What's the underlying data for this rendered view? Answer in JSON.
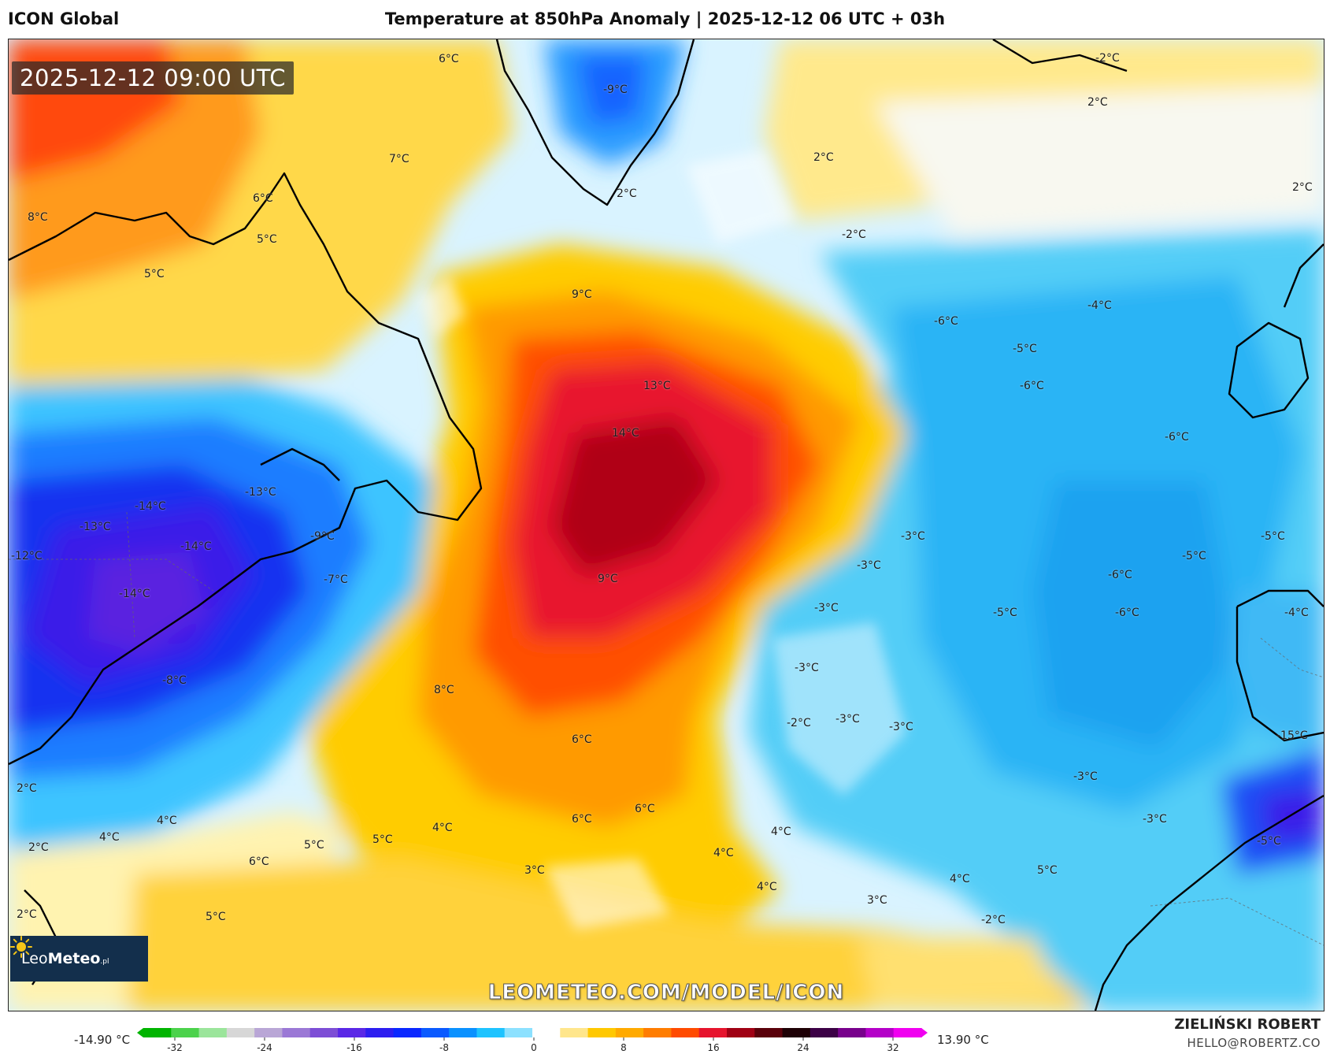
{
  "header": {
    "model": "ICON Global",
    "title": "Temperature at 850hPa Anomaly | 2025-12-12 06 UTC + 03h"
  },
  "map": {
    "timestamp": "2025-12-12 09:00 UTC",
    "watermark": "LEOMETEO.COM/MODEL/ICON",
    "logo_text_light": "Leo",
    "logo_text_bold": "Meteo",
    "logo_suffix": ".pl",
    "labels": [
      "6°C",
      "-9°C",
      "-2°C",
      "2°C",
      "2°C",
      "7°C",
      "2°C",
      "2°C",
      "8°C",
      "6°C",
      "5°C",
      "-2°C",
      "5°C",
      "9°C",
      "-4°C",
      "-6°C",
      "-5°C",
      "13°C",
      "-6°C",
      "14°C",
      "-6°C",
      "-14°C",
      "-13°C",
      "-13°C",
      "-14°C",
      "-12°C",
      "-9°C",
      "-7°C",
      "-14°C",
      "9°C",
      "-3°C",
      "-5°C",
      "-3°C",
      "-5°C",
      "-6°C",
      "-3°C",
      "-5°C",
      "-6°C",
      "-4°C",
      "-3°C",
      "-8°C",
      "8°C",
      "-2°C",
      "-3°C",
      "-3°C",
      "-15°C",
      "6°C",
      "2°C",
      "-3°C",
      "6°C",
      "4°C",
      "4°C",
      "6°C",
      "-3°C",
      "4°C",
      "5°C",
      "5°C",
      "4°C",
      "4°C",
      "-5°C",
      "6°C",
      "2°C",
      "3°C",
      "4°C",
      "5°C",
      "4°C",
      "3°C",
      "2°C",
      "5°C",
      "-2°C"
    ]
  },
  "colorbar": {
    "min_label": "-14.90 °C",
    "max_label": "13.90 °C",
    "ticks": [
      "-32",
      "-24",
      "-16",
      "-8",
      "0",
      "8",
      "16",
      "24",
      "32"
    ],
    "colors": [
      "#00b400",
      "#4cd24c",
      "#9be59b",
      "#d7d7d7",
      "#b9a6d6",
      "#9b78d6",
      "#7d4ed6",
      "#5a28e6",
      "#2d1ef0",
      "#0a28ff",
      "#0a5aff",
      "#0a91ff",
      "#1ec3ff",
      "#8ce1ff",
      "#ffffff",
      "#ffe68c",
      "#ffc800",
      "#ffaa00",
      "#ff7d00",
      "#ff4b00",
      "#e6142d",
      "#a00014",
      "#5a000a",
      "#1e0005",
      "#3c0046",
      "#78008c",
      "#b400c8",
      "#f000f0"
    ]
  },
  "author": {
    "name": "ZIELIŃSKI ROBERT",
    "email": "HELLO@ROBERTZ.CO"
  }
}
